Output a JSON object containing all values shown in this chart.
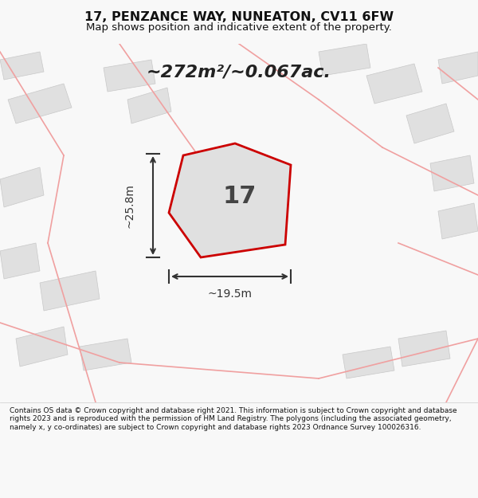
{
  "title": "17, PENZANCE WAY, NUNEATON, CV11 6FW",
  "subtitle": "Map shows position and indicative extent of the property.",
  "area_text": "~272m²/~0.067ac.",
  "plot_number": "17",
  "dim_width": "~19.5m",
  "dim_height": "~25.8m",
  "footer": "Contains OS data © Crown copyright and database right 2021. This information is subject to Crown copyright and database rights 2023 and is reproduced with the permission of HM Land Registry. The polygons (including the associated geometry, namely x, y co-ordinates) are subject to Crown copyright and database rights 2023 Ordnance Survey 100026316.",
  "bg_color": "#f8f8f8",
  "map_bg_color": "#f2f2f2",
  "plot_fill": "#e0e0e0",
  "plot_edge_color": "#cc0000",
  "road_color": "#f0a0a0",
  "building_color": "#e0e0e0",
  "building_edge": "#c8c8c8",
  "dim_line_color": "#333333",
  "title_color": "#111111"
}
